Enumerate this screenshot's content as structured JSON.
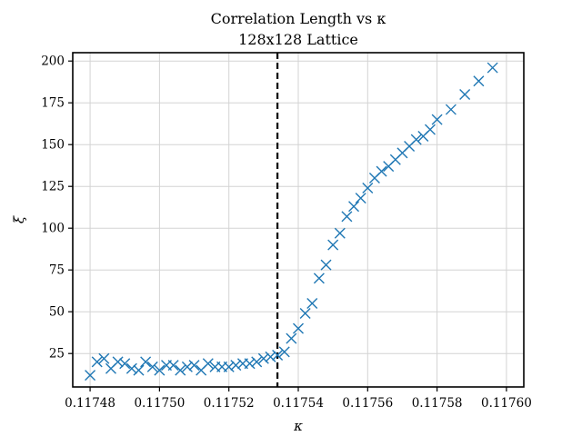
{
  "chart_data": {
    "type": "scatter",
    "title": "Correlation Length vs κ",
    "subtitle": "128x128 Lattice",
    "xlabel": "κ",
    "ylabel": "ξ",
    "xlim": [
      0.117475,
      0.117605
    ],
    "ylim": [
      5,
      205
    ],
    "xticks": [
      0.11748,
      0.1175,
      0.11752,
      0.11754,
      0.11756,
      0.11758,
      0.1176
    ],
    "xtick_labels": [
      "0.11748",
      "0.11750",
      "0.11752",
      "0.11754",
      "0.11756",
      "0.11758",
      "0.11760"
    ],
    "yticks": [
      25,
      50,
      75,
      100,
      125,
      150,
      175,
      200
    ],
    "ytick_labels": [
      "25",
      "50",
      "75",
      "100",
      "125",
      "150",
      "175",
      "200"
    ],
    "grid": true,
    "marker": "x",
    "marker_color": "#1f77b4",
    "critical_line": {
      "x": 0.117534,
      "style": "dashed",
      "color": "#000000"
    },
    "series": [
      {
        "x": [
          0.11748,
          0.117482,
          0.117484,
          0.117486,
          0.117488,
          0.11749,
          0.117492,
          0.117494,
          0.117496,
          0.117498,
          0.1175,
          0.117502,
          0.117504,
          0.117506,
          0.117508,
          0.11751,
          0.117512,
          0.117514,
          0.117516,
          0.117518,
          0.11752,
          0.117522,
          0.117524,
          0.117526,
          0.117528,
          0.11753,
          0.117532,
          0.117534,
          0.117536,
          0.117538,
          0.11754,
          0.117542,
          0.117544,
          0.117546,
          0.117548,
          0.11755,
          0.117552,
          0.117554,
          0.117556,
          0.117558,
          0.11756,
          0.117562,
          0.117564,
          0.117566,
          0.117568,
          0.11757,
          0.117572,
          0.117574,
          0.117576,
          0.117578,
          0.11758,
          0.117584,
          0.117588,
          0.117592,
          0.117596
        ],
        "y": [
          12,
          20,
          22,
          16,
          20,
          19,
          16,
          15,
          20,
          17,
          15,
          18,
          18,
          15,
          17,
          18,
          15,
          19,
          17,
          17,
          17,
          18,
          19,
          19,
          20,
          22,
          23,
          24,
          26,
          34,
          40,
          49,
          55,
          70,
          78,
          90,
          97,
          107,
          113,
          118,
          124,
          130,
          134,
          137,
          141,
          145,
          149,
          153,
          155,
          159,
          165,
          171,
          180,
          188,
          196
        ]
      }
    ]
  }
}
